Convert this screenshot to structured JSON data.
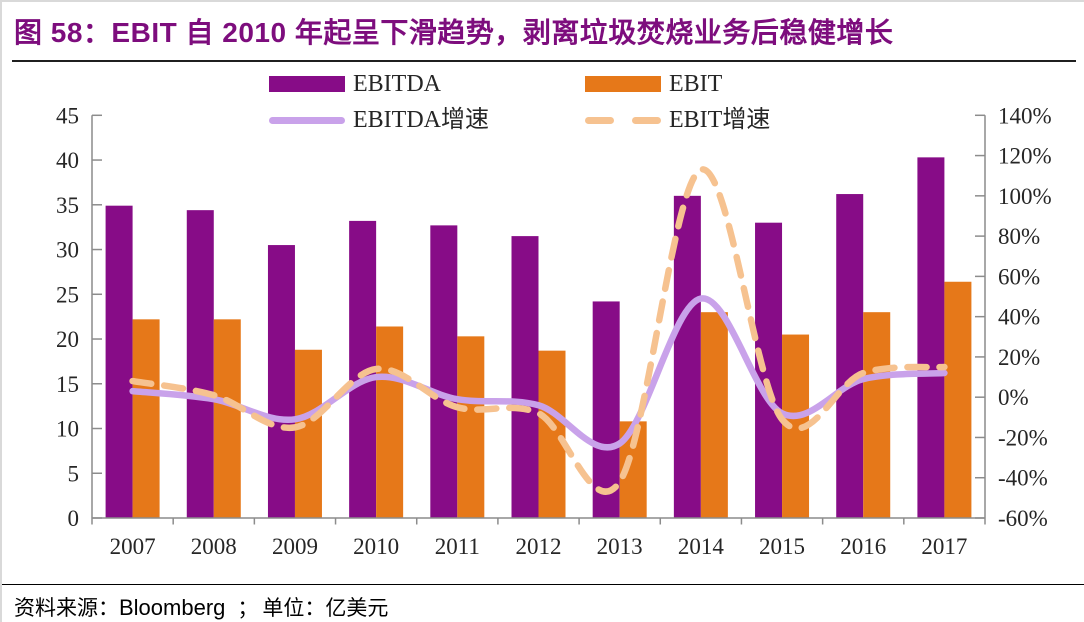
{
  "figure": {
    "title": "图 58：EBIT 自 2010 年起呈下滑趋势，剥离垃圾焚烧业务后稳健增长",
    "footer": {
      "source_label": "资料来源：",
      "source_value": "Bloomberg",
      "separator": "；",
      "unit_label": "单位：",
      "unit_value": "亿美元"
    }
  },
  "colors": {
    "title_text": "#7d0d7d",
    "ebitda_bar": "#870c87",
    "ebit_bar": "#e67819",
    "ebitda_growth_line": "#c9a2ea",
    "ebit_growth_line": "#f6c290",
    "axis": "#8c8c8c",
    "axis_text": "#262626",
    "divider": "#1f1f1f"
  },
  "chart_data": {
    "type": "combo: grouped bars (left axis) + smoothed lines (right axis)",
    "title": "EBITDA / EBIT 及增速",
    "categories": [
      "2007",
      "2008",
      "2009",
      "2010",
      "2011",
      "2012",
      "2013",
      "2014",
      "2015",
      "2016",
      "2017"
    ],
    "series": [
      {
        "name": "EBITDA",
        "type": "bar",
        "axis": "left",
        "color": "#870c87",
        "values": [
          34.9,
          34.4,
          30.5,
          33.2,
          32.7,
          31.5,
          24.2,
          36.0,
          33.0,
          36.2,
          40.3
        ]
      },
      {
        "name": "EBIT",
        "type": "bar",
        "axis": "left",
        "color": "#e67819",
        "values": [
          22.2,
          22.2,
          18.8,
          21.4,
          20.3,
          18.7,
          10.8,
          23.0,
          20.5,
          23.0,
          26.4
        ]
      },
      {
        "name": "EBITDA增速",
        "type": "line",
        "style": "solid",
        "axis": "right",
        "color": "#c9a2ea",
        "values_percent": [
          3,
          -1,
          -11,
          10,
          -1,
          -4,
          -23,
          49,
          -8,
          9,
          12
        ]
      },
      {
        "name": "EBIT增速",
        "type": "line",
        "style": "dashed",
        "axis": "right",
        "color": "#f6c290",
        "values_percent": [
          8,
          1,
          -15,
          14,
          -5,
          -8,
          -42,
          113,
          -11,
          12,
          15
        ]
      }
    ],
    "left_axis": {
      "min": 0,
      "max": 45,
      "step": 5,
      "unit": "亿美元",
      "tick_labels": [
        "0",
        "5",
        "10",
        "15",
        "20",
        "25",
        "30",
        "35",
        "40",
        "45"
      ]
    },
    "right_axis": {
      "min": -60,
      "max": 140,
      "step": 20,
      "format": "percent",
      "tick_labels": [
        "-60%",
        "-40%",
        "-20%",
        "0%",
        "20%",
        "40%",
        "60%",
        "80%",
        "100%",
        "120%",
        "140%"
      ]
    },
    "grid": false,
    "legend_position": "top-center"
  }
}
